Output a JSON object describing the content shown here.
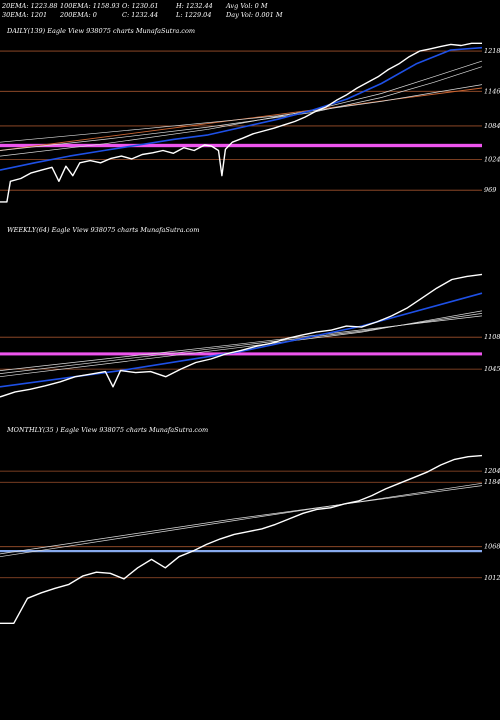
{
  "header": {
    "row1": [
      {
        "id": "ema20",
        "text": "20EMA: 1223.88"
      },
      {
        "id": "ema100",
        "text": "100EMA: 1158.93"
      },
      {
        "id": "open",
        "text": "O: 1230.61"
      },
      {
        "id": "high",
        "text": "H: 1232.44"
      },
      {
        "id": "avgvol",
        "text": "Avg Vol: 0  M"
      }
    ],
    "row2": [
      {
        "id": "ema30",
        "text": "30EMA: 1201"
      },
      {
        "id": "ema200",
        "text": "200EMA: 0"
      },
      {
        "id": "close",
        "text": "C: 1232.44"
      },
      {
        "id": "low",
        "text": "L: 1229.04"
      },
      {
        "id": "dayvol",
        "text": "Day Vol: 0.001 M"
      }
    ]
  },
  "colors": {
    "background": "#000000",
    "price": "#ffffff",
    "ema_blue": "#1e50e6",
    "ema_white": "#dcdcdc",
    "support": "#a0522d",
    "magenta": "#ee55ee",
    "monthly_band": "#88aaee"
  },
  "chart_data": [
    {
      "type": "line",
      "label": "DAILY(139) Eagle   View  938075 charts MunafaSutra.com",
      "ylim": [
        930,
        1245
      ],
      "levels": [
        {
          "value": 1218,
          "label": "1218"
        },
        {
          "value": 1146,
          "label": "1146"
        },
        {
          "value": 1084,
          "label": "1084"
        },
        {
          "value": 1024,
          "label": "1024"
        },
        {
          "value": 969,
          "label": "969"
        }
      ],
      "magenta_band": [
        1046,
        1052
      ],
      "price": [
        {
          "x": 0,
          "y": 948
        },
        {
          "x": 2,
          "y": 948
        },
        {
          "x": 3,
          "y": 985
        },
        {
          "x": 6,
          "y": 990
        },
        {
          "x": 9,
          "y": 1000
        },
        {
          "x": 12,
          "y": 1005
        },
        {
          "x": 15,
          "y": 1010
        },
        {
          "x": 17,
          "y": 985
        },
        {
          "x": 19,
          "y": 1012
        },
        {
          "x": 21,
          "y": 995
        },
        {
          "x": 23,
          "y": 1018
        },
        {
          "x": 26,
          "y": 1022
        },
        {
          "x": 29,
          "y": 1018
        },
        {
          "x": 32,
          "y": 1026
        },
        {
          "x": 35,
          "y": 1030
        },
        {
          "x": 38,
          "y": 1025
        },
        {
          "x": 41,
          "y": 1033
        },
        {
          "x": 44,
          "y": 1036
        },
        {
          "x": 47,
          "y": 1040
        },
        {
          "x": 50,
          "y": 1035
        },
        {
          "x": 53,
          "y": 1045
        },
        {
          "x": 56,
          "y": 1040
        },
        {
          "x": 59,
          "y": 1050
        },
        {
          "x": 61,
          "y": 1048
        },
        {
          "x": 63,
          "y": 1040
        },
        {
          "x": 64,
          "y": 995
        },
        {
          "x": 65,
          "y": 1042
        },
        {
          "x": 67,
          "y": 1055
        },
        {
          "x": 70,
          "y": 1062
        },
        {
          "x": 73,
          "y": 1070
        },
        {
          "x": 76,
          "y": 1075
        },
        {
          "x": 79,
          "y": 1080
        },
        {
          "x": 82,
          "y": 1086
        },
        {
          "x": 85,
          "y": 1092
        },
        {
          "x": 88,
          "y": 1100
        },
        {
          "x": 91,
          "y": 1110
        },
        {
          "x": 94,
          "y": 1118
        },
        {
          "x": 97,
          "y": 1130
        },
        {
          "x": 100,
          "y": 1140
        },
        {
          "x": 103,
          "y": 1152
        },
        {
          "x": 106,
          "y": 1162
        },
        {
          "x": 109,
          "y": 1172
        },
        {
          "x": 112,
          "y": 1185
        },
        {
          "x": 115,
          "y": 1195
        },
        {
          "x": 118,
          "y": 1208
        },
        {
          "x": 121,
          "y": 1218
        },
        {
          "x": 124,
          "y": 1222
        },
        {
          "x": 127,
          "y": 1226
        },
        {
          "x": 130,
          "y": 1230
        },
        {
          "x": 133,
          "y": 1228
        },
        {
          "x": 136,
          "y": 1232
        },
        {
          "x": 139,
          "y": 1232
        }
      ],
      "ema_blue": [
        {
          "x": 0,
          "y": 1005
        },
        {
          "x": 10,
          "y": 1018
        },
        {
          "x": 20,
          "y": 1030
        },
        {
          "x": 30,
          "y": 1040
        },
        {
          "x": 40,
          "y": 1050
        },
        {
          "x": 50,
          "y": 1060
        },
        {
          "x": 60,
          "y": 1068
        },
        {
          "x": 70,
          "y": 1082
        },
        {
          "x": 80,
          "y": 1096
        },
        {
          "x": 90,
          "y": 1112
        },
        {
          "x": 100,
          "y": 1132
        },
        {
          "x": 110,
          "y": 1160
        },
        {
          "x": 120,
          "y": 1195
        },
        {
          "x": 130,
          "y": 1220
        },
        {
          "x": 139,
          "y": 1224
        }
      ],
      "ema_white_1": [
        {
          "x": 0,
          "y": 1030
        },
        {
          "x": 30,
          "y": 1052
        },
        {
          "x": 60,
          "y": 1078
        },
        {
          "x": 90,
          "y": 1112
        },
        {
          "x": 110,
          "y": 1142
        },
        {
          "x": 125,
          "y": 1172
        },
        {
          "x": 139,
          "y": 1200
        }
      ],
      "ema_white_2": [
        {
          "x": 0,
          "y": 1040
        },
        {
          "x": 30,
          "y": 1060
        },
        {
          "x": 60,
          "y": 1082
        },
        {
          "x": 90,
          "y": 1108
        },
        {
          "x": 110,
          "y": 1135
        },
        {
          "x": 125,
          "y": 1162
        },
        {
          "x": 139,
          "y": 1190
        }
      ],
      "ema_white_3": [
        {
          "x": 0,
          "y": 1055
        },
        {
          "x": 40,
          "y": 1078
        },
        {
          "x": 80,
          "y": 1102
        },
        {
          "x": 110,
          "y": 1128
        },
        {
          "x": 139,
          "y": 1158
        }
      ],
      "trend_orange": [
        {
          "x": 0,
          "y": 1040
        },
        {
          "x": 139,
          "y": 1152
        }
      ]
    },
    {
      "type": "line",
      "label": "WEEKLY(64) Eagle   View  938075 charts MunafaSutra.com",
      "ylim": [
        980,
        1300
      ],
      "levels": [
        {
          "value": 1108,
          "label": "1108"
        },
        {
          "value": 1045,
          "label": "1045"
        }
      ],
      "magenta_band": [
        1072,
        1078
      ],
      "price": [
        {
          "x": 0,
          "y": 990
        },
        {
          "x": 2,
          "y": 1000
        },
        {
          "x": 4,
          "y": 1005
        },
        {
          "x": 6,
          "y": 1012
        },
        {
          "x": 8,
          "y": 1020
        },
        {
          "x": 10,
          "y": 1030
        },
        {
          "x": 12,
          "y": 1035
        },
        {
          "x": 14,
          "y": 1040
        },
        {
          "x": 15,
          "y": 1010
        },
        {
          "x": 16,
          "y": 1042
        },
        {
          "x": 18,
          "y": 1038
        },
        {
          "x": 20,
          "y": 1040
        },
        {
          "x": 22,
          "y": 1030
        },
        {
          "x": 24,
          "y": 1045
        },
        {
          "x": 26,
          "y": 1058
        },
        {
          "x": 28,
          "y": 1065
        },
        {
          "x": 30,
          "y": 1075
        },
        {
          "x": 32,
          "y": 1082
        },
        {
          "x": 34,
          "y": 1090
        },
        {
          "x": 36,
          "y": 1096
        },
        {
          "x": 38,
          "y": 1105
        },
        {
          "x": 40,
          "y": 1112
        },
        {
          "x": 42,
          "y": 1118
        },
        {
          "x": 44,
          "y": 1122
        },
        {
          "x": 46,
          "y": 1130
        },
        {
          "x": 48,
          "y": 1128
        },
        {
          "x": 50,
          "y": 1138
        },
        {
          "x": 52,
          "y": 1150
        },
        {
          "x": 54,
          "y": 1165
        },
        {
          "x": 56,
          "y": 1185
        },
        {
          "x": 58,
          "y": 1205
        },
        {
          "x": 60,
          "y": 1222
        },
        {
          "x": 62,
          "y": 1228
        },
        {
          "x": 64,
          "y": 1232
        }
      ],
      "ema_blue": [
        {
          "x": 0,
          "y": 1010
        },
        {
          "x": 16,
          "y": 1042
        },
        {
          "x": 32,
          "y": 1080
        },
        {
          "x": 48,
          "y": 1130
        },
        {
          "x": 64,
          "y": 1195
        }
      ],
      "ema_white_1": [
        {
          "x": 0,
          "y": 1030
        },
        {
          "x": 32,
          "y": 1088
        },
        {
          "x": 48,
          "y": 1118
        },
        {
          "x": 64,
          "y": 1160
        }
      ],
      "ema_white_2": [
        {
          "x": 0,
          "y": 1036
        },
        {
          "x": 32,
          "y": 1092
        },
        {
          "x": 48,
          "y": 1120
        },
        {
          "x": 64,
          "y": 1155
        }
      ],
      "ema_white_3": [
        {
          "x": 0,
          "y": 1042
        },
        {
          "x": 32,
          "y": 1095
        },
        {
          "x": 64,
          "y": 1150
        }
      ],
      "trend_orange": []
    },
    {
      "type": "line",
      "label": "MONTHLY(35                               ) Eagle   View  938075 charts MunafaSutra.com",
      "ylim": [
        900,
        1260
      ],
      "levels": [
        {
          "value": 1204,
          "label": "1204"
        },
        {
          "value": 1184,
          "label": "1184"
        },
        {
          "value": 1068,
          "label": "1068"
        },
        {
          "value": 1012,
          "label": "1012"
        }
      ],
      "magenta_band": [],
      "monthly_band": [
        1058,
        1062
      ],
      "price": [
        {
          "x": 0,
          "y": 930
        },
        {
          "x": 1,
          "y": 930
        },
        {
          "x": 2,
          "y": 975
        },
        {
          "x": 3,
          "y": 985
        },
        {
          "x": 4,
          "y": 993
        },
        {
          "x": 5,
          "y": 1000
        },
        {
          "x": 6,
          "y": 1015
        },
        {
          "x": 7,
          "y": 1022
        },
        {
          "x": 8,
          "y": 1020
        },
        {
          "x": 9,
          "y": 1010
        },
        {
          "x": 10,
          "y": 1030
        },
        {
          "x": 11,
          "y": 1045
        },
        {
          "x": 12,
          "y": 1030
        },
        {
          "x": 13,
          "y": 1050
        },
        {
          "x": 14,
          "y": 1060
        },
        {
          "x": 15,
          "y": 1072
        },
        {
          "x": 16,
          "y": 1082
        },
        {
          "x": 17,
          "y": 1090
        },
        {
          "x": 18,
          "y": 1095
        },
        {
          "x": 19,
          "y": 1100
        },
        {
          "x": 20,
          "y": 1108
        },
        {
          "x": 21,
          "y": 1118
        },
        {
          "x": 22,
          "y": 1128
        },
        {
          "x": 23,
          "y": 1135
        },
        {
          "x": 24,
          "y": 1138
        },
        {
          "x": 25,
          "y": 1145
        },
        {
          "x": 26,
          "y": 1150
        },
        {
          "x": 27,
          "y": 1160
        },
        {
          "x": 28,
          "y": 1172
        },
        {
          "x": 29,
          "y": 1182
        },
        {
          "x": 30,
          "y": 1192
        },
        {
          "x": 31,
          "y": 1202
        },
        {
          "x": 32,
          "y": 1215
        },
        {
          "x": 33,
          "y": 1225
        },
        {
          "x": 34,
          "y": 1230
        },
        {
          "x": 35,
          "y": 1232
        }
      ],
      "ema_blue": [],
      "ema_white_1": [
        {
          "x": 0,
          "y": 1050
        },
        {
          "x": 17,
          "y": 1115
        },
        {
          "x": 35,
          "y": 1182
        }
      ],
      "ema_white_2": [
        {
          "x": 0,
          "y": 1055
        },
        {
          "x": 17,
          "y": 1118
        },
        {
          "x": 35,
          "y": 1178
        }
      ],
      "ema_white_3": [],
      "trend_orange": []
    }
  ]
}
